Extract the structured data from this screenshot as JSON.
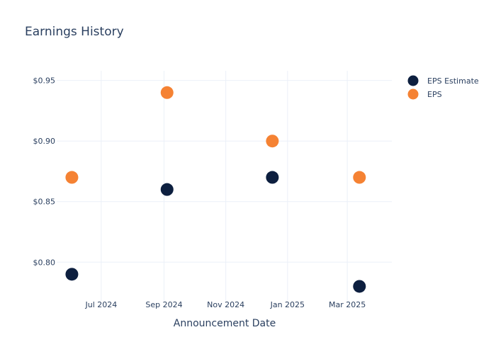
{
  "chart_data": {
    "type": "scatter",
    "title": "Earnings History",
    "xlabel": "Announcement Date",
    "ylabel": "",
    "x_range": [
      "2024-05-18",
      "2025-04-14"
    ],
    "ylim": [
      0.768,
      0.958
    ],
    "x_ticks": [
      {
        "date": "2024-07-01",
        "label": "Jul 2024"
      },
      {
        "date": "2024-09-01",
        "label": "Sep 2024"
      },
      {
        "date": "2024-11-01",
        "label": "Nov 2024"
      },
      {
        "date": "2025-01-01",
        "label": "Jan 2025"
      },
      {
        "date": "2025-03-01",
        "label": "Mar 2025"
      }
    ],
    "y_ticks": [
      {
        "value": 0.8,
        "label": "$0.80"
      },
      {
        "value": 0.85,
        "label": "$0.85"
      },
      {
        "value": 0.9,
        "label": "$0.90"
      },
      {
        "value": 0.95,
        "label": "$0.95"
      }
    ],
    "grid": true,
    "legend_position": "top-right",
    "series": [
      {
        "name": "EPS Estimate",
        "color": "#0d1f3f",
        "points": [
          {
            "x": "2024-06-02",
            "y": 0.79
          },
          {
            "x": "2024-09-04",
            "y": 0.86
          },
          {
            "x": "2024-12-17",
            "y": 0.87
          },
          {
            "x": "2025-03-13",
            "y": 0.78
          }
        ]
      },
      {
        "name": "EPS",
        "color": "#f58233",
        "points": [
          {
            "x": "2024-06-02",
            "y": 0.87
          },
          {
            "x": "2024-09-04",
            "y": 0.94
          },
          {
            "x": "2024-12-17",
            "y": 0.9
          },
          {
            "x": "2025-03-13",
            "y": 0.87
          }
        ]
      }
    ]
  }
}
